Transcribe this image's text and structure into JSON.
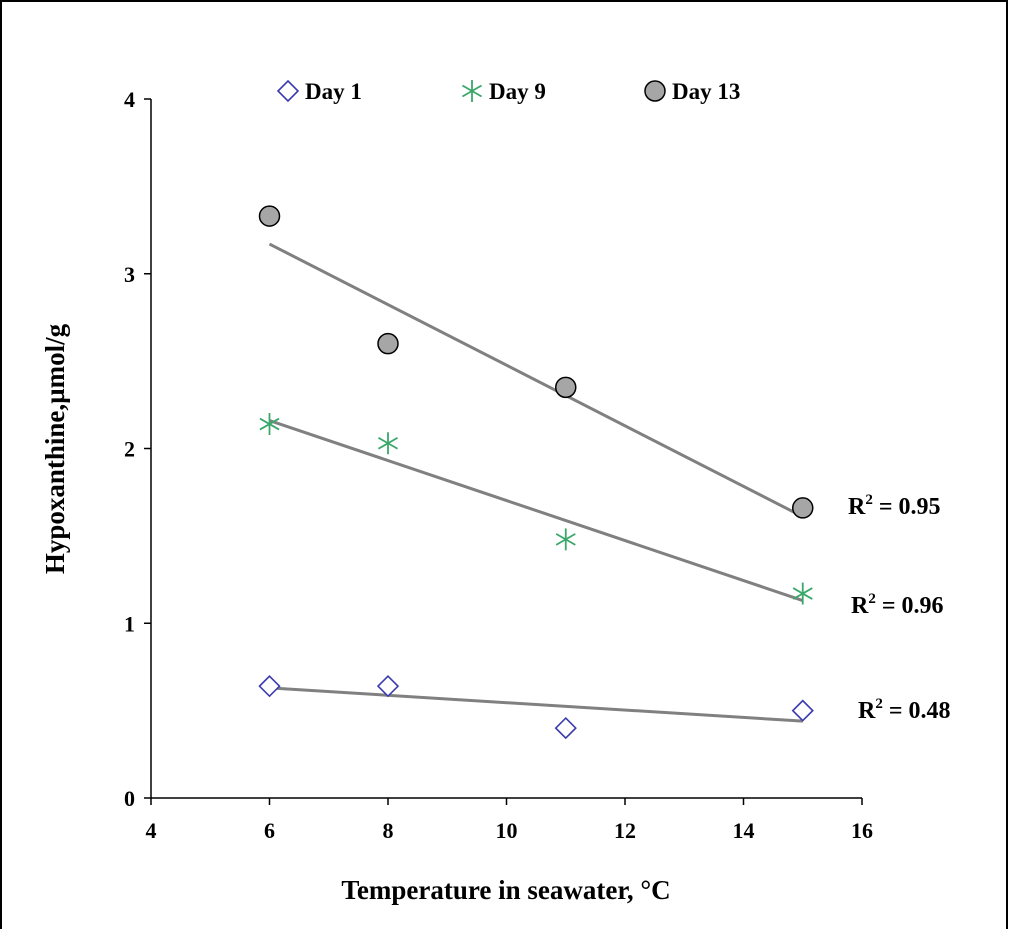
{
  "chart_data": {
    "type": "scatter",
    "title": "",
    "xlabel": "Temperature in seawater, °C",
    "ylabel": "Hypoxanthine,µmol/g",
    "xlim": [
      4,
      16
    ],
    "ylim": [
      0,
      4
    ],
    "xticks": [
      "4",
      "6",
      "8",
      "10",
      "12",
      "14",
      "16"
    ],
    "yticks": [
      "0",
      "1",
      "2",
      "3",
      "4"
    ],
    "grid": false,
    "legend_position": "top",
    "series": [
      {
        "name": "Day 1",
        "marker": "diamond-open",
        "color": "#3b3bb0",
        "x": [
          6,
          8,
          11,
          15
        ],
        "y": [
          0.64,
          0.64,
          0.4,
          0.5
        ],
        "trendline": {
          "x": [
            6,
            15
          ],
          "y": [
            0.63,
            0.44
          ]
        },
        "r2": "R2 = 0.48"
      },
      {
        "name": "Day 9",
        "marker": "asterisk",
        "color": "#3aa86a",
        "x": [
          6,
          8,
          11,
          15
        ],
        "y": [
          2.14,
          2.03,
          1.48,
          1.17
        ],
        "trendline": {
          "x": [
            6,
            15
          ],
          "y": [
            2.16,
            1.13
          ]
        },
        "r2": "R2 = 0.96"
      },
      {
        "name": "Day 13",
        "marker": "circle-filled",
        "color": "#a6a6a6",
        "x": [
          6,
          8,
          11,
          15
        ],
        "y": [
          3.33,
          2.6,
          2.35,
          1.66
        ],
        "trendline": {
          "x": [
            6,
            15
          ],
          "y": [
            3.17,
            1.61
          ]
        },
        "r2": "R2 = 0.95"
      }
    ]
  }
}
